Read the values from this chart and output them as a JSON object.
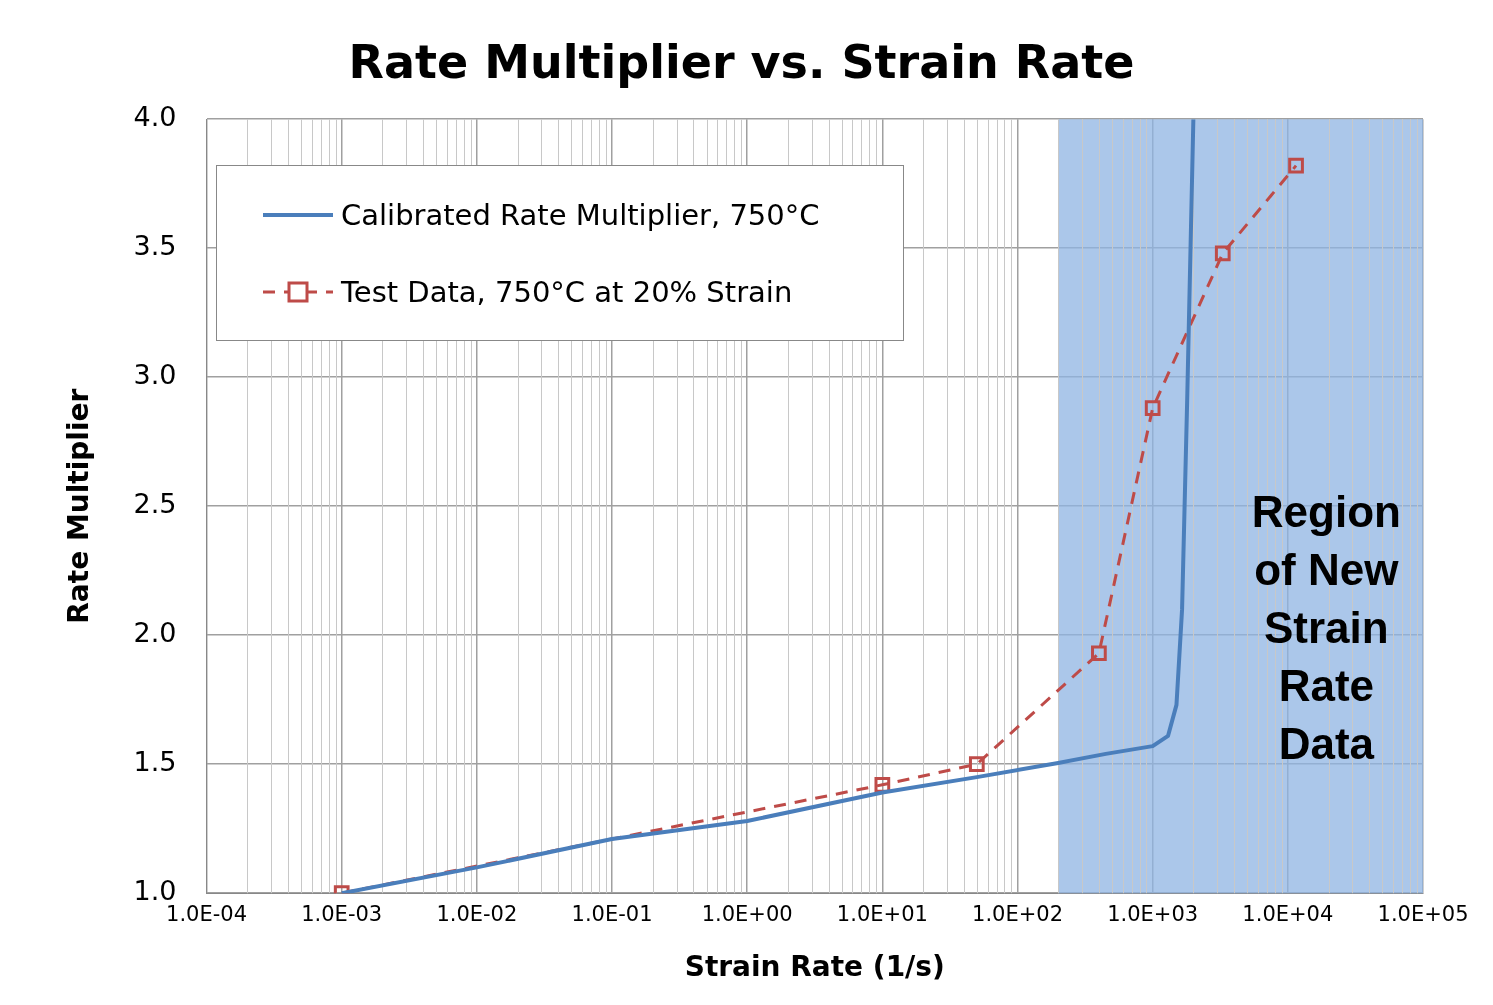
{
  "chart_data": {
    "type": "line",
    "title": "Rate Multiplier vs. Strain Rate",
    "xlabel": "Strain Rate (1/s)",
    "ylabel": "Rate Multiplier",
    "log": "x",
    "grid": true,
    "legend": "top left",
    "xlim": [
      0.0001,
      100000
    ],
    "xticks": [
      {
        "value": 0.0001,
        "label": "1.0E-04"
      },
      {
        "value": 0.001,
        "label": "1.0E-03"
      },
      {
        "value": 0.01,
        "label": "1.0E-02"
      },
      {
        "value": 0.1,
        "label": "1.0E-01"
      },
      {
        "value": 1,
        "label": "1.0E+00"
      },
      {
        "value": 10,
        "label": "1.0E+01"
      },
      {
        "value": 100,
        "label": "1.0E+02"
      },
      {
        "value": 1000,
        "label": "1.0E+03"
      },
      {
        "value": 10000,
        "label": "1.0E+04"
      },
      {
        "value": 100000,
        "label": "1.0E+05"
      }
    ],
    "ylim": [
      1,
      4
    ],
    "yticks": [
      {
        "value": 1,
        "label": "1.0"
      },
      {
        "value": 1.5,
        "label": "1.5"
      },
      {
        "value": 2,
        "label": "2.0"
      },
      {
        "value": 2.5,
        "label": "2.5"
      },
      {
        "value": 3,
        "label": "3.0"
      },
      {
        "value": 3.5,
        "label": "3.5"
      },
      {
        "value": 4,
        "label": "4.0"
      }
    ],
    "bands": [
      {
        "axis": "x",
        "from": 200,
        "to": 100000,
        "label": "Region of New Strain Rate Data",
        "color": "#8fb4e3"
      }
    ],
    "series": [
      {
        "name": "Calibrated Rate Multiplier, 750°C",
        "color": "#4a7ebb",
        "marker": "none",
        "line_style": "solid",
        "x": [
          0.001,
          0.01,
          0.1,
          1,
          10,
          50,
          200,
          450,
          1000,
          1300,
          1500,
          1650,
          1800,
          2000
        ],
        "values": [
          1.0,
          1.1,
          1.21,
          1.28,
          1.39,
          1.45,
          1.505,
          1.54,
          1.57,
          1.61,
          1.73,
          2.1,
          2.91,
          4.0
        ]
      },
      {
        "name": "Test Data, 750°C at 20% Strain",
        "color": "#be4b48",
        "marker": "square",
        "line_style": "dashed",
        "x": [
          0.001,
          10,
          50,
          400,
          1000,
          3300,
          11500
        ],
        "values": [
          1.0,
          1.42,
          1.5,
          1.93,
          2.88,
          3.48,
          3.82
        ]
      }
    ]
  }
}
